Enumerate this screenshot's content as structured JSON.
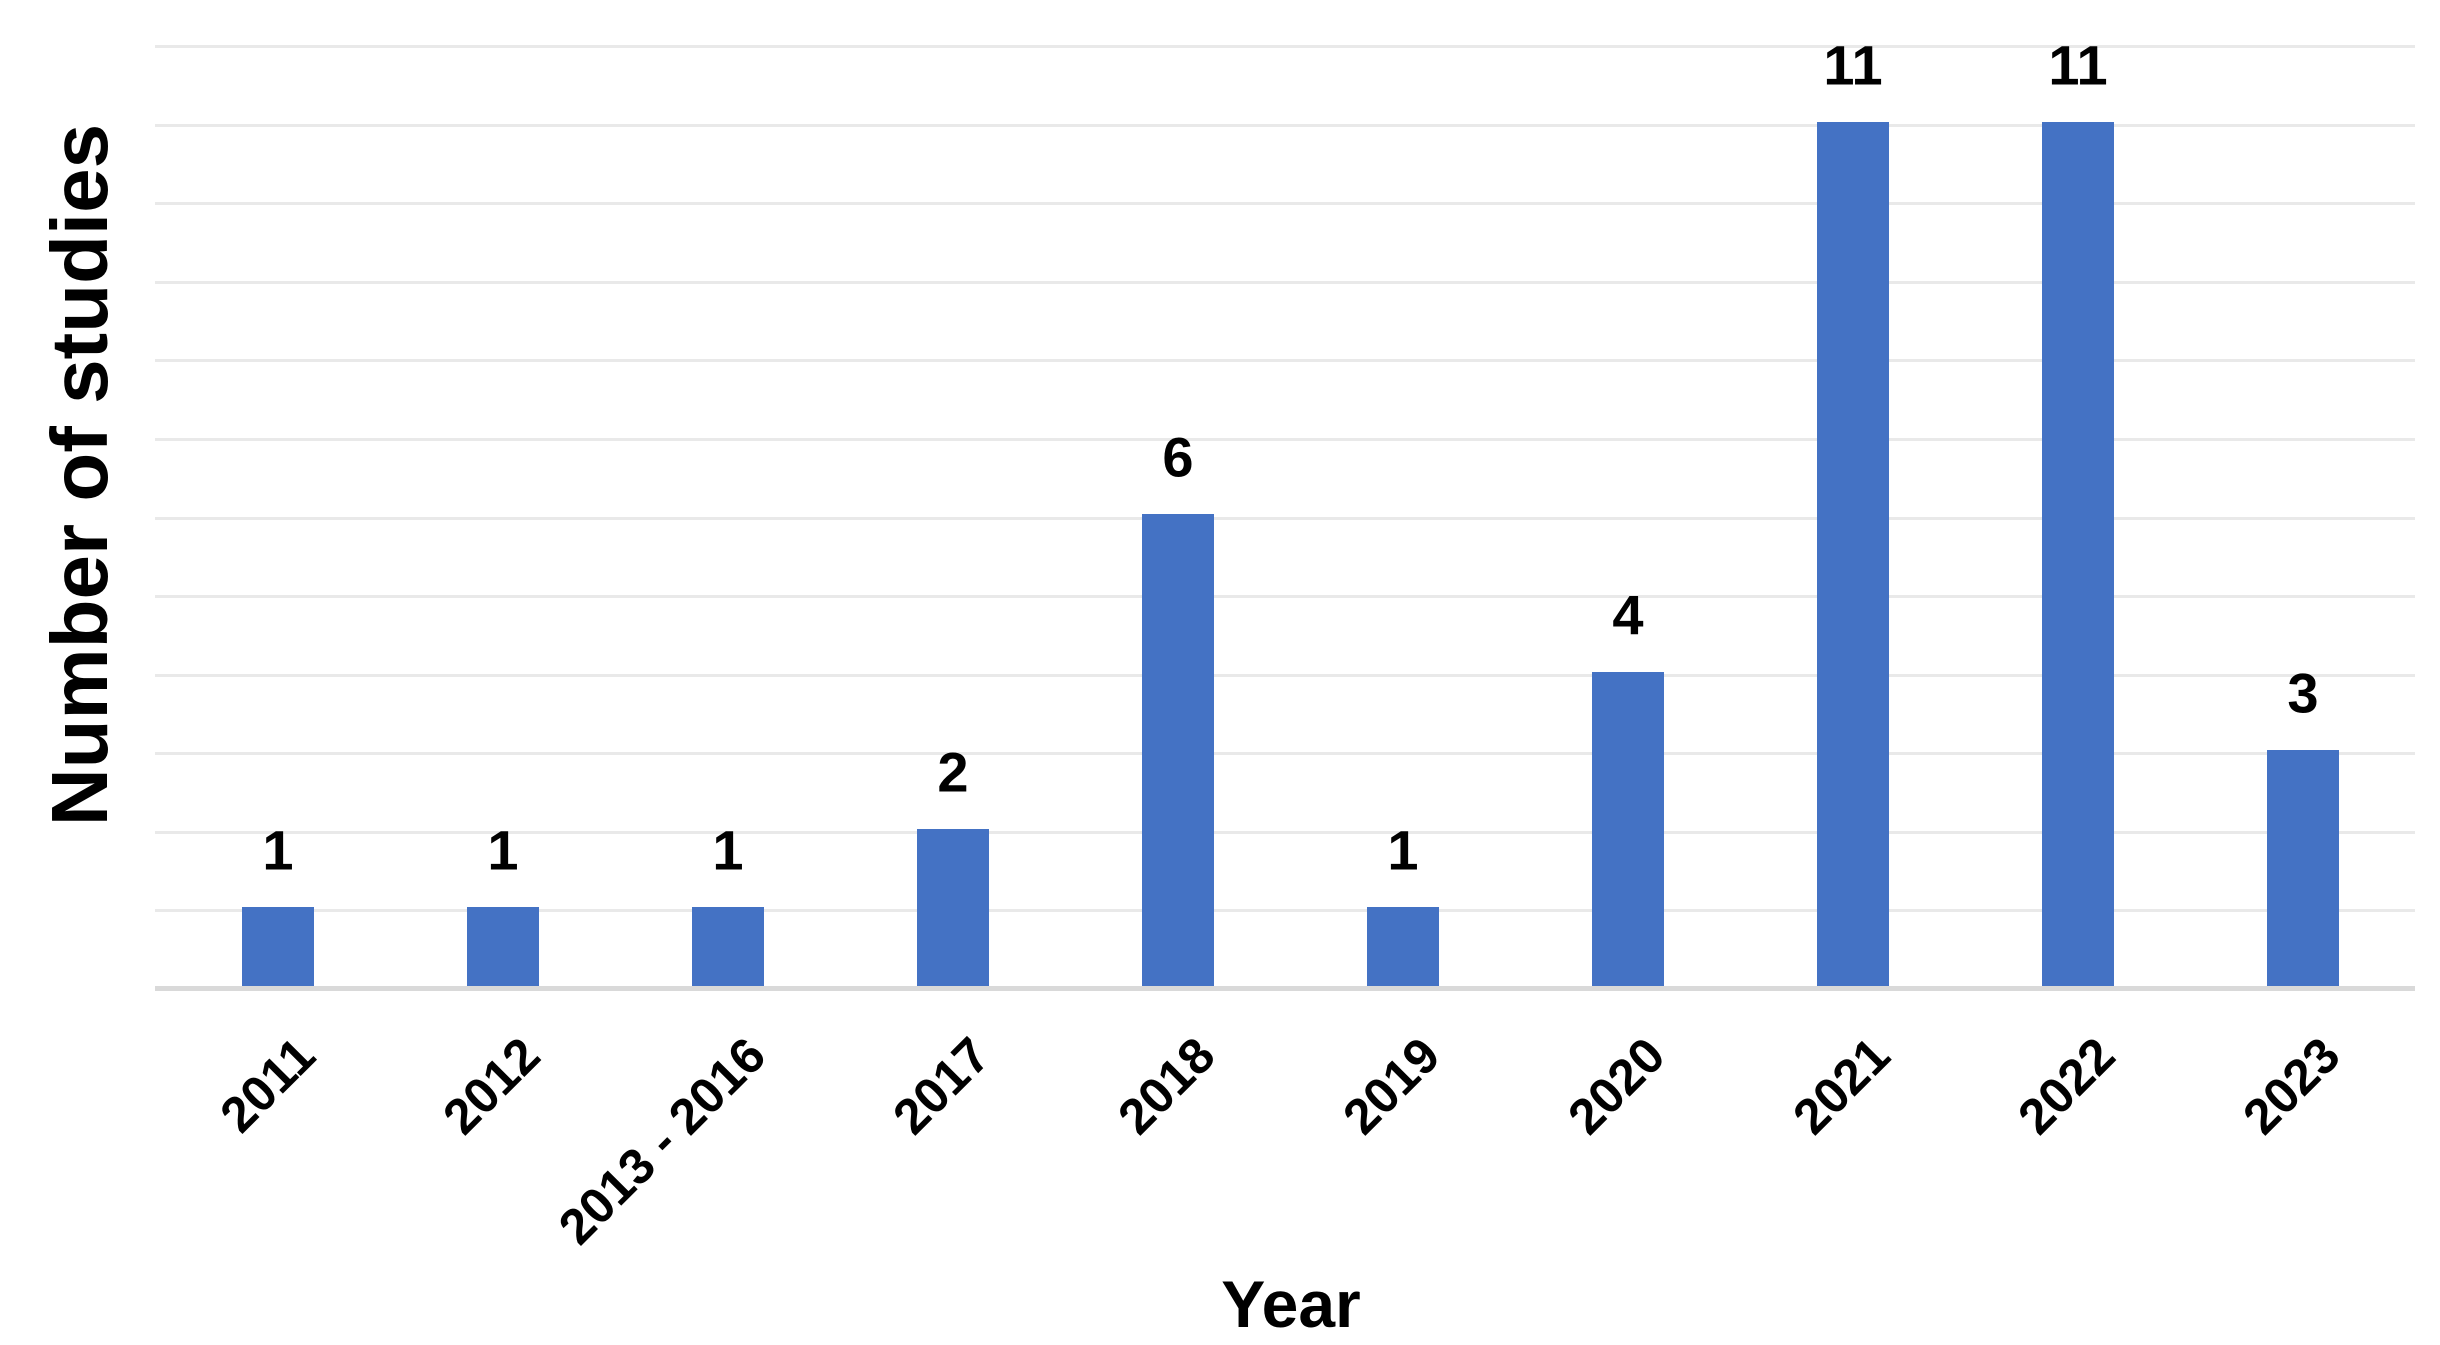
{
  "chart_data": {
    "type": "bar",
    "title": "",
    "categories": [
      "2011",
      "2012",
      "2013 - 2016",
      "2017",
      "2018",
      "2019",
      "2020",
      "2021",
      "2022",
      "2023"
    ],
    "values": [
      1,
      1,
      1,
      2,
      6,
      1,
      4,
      11,
      11,
      3
    ],
    "data_labels": [
      "1",
      "1",
      "1",
      "2",
      "6",
      "1",
      "4",
      "11",
      "11",
      "3"
    ],
    "xlabel": "Year",
    "ylabel": "Number of studies",
    "ylim": [
      0,
      12
    ],
    "gridline_step": 1,
    "grid": "horizontal-only",
    "y_tick_labels_visible": false,
    "legend": "none",
    "bar_color": "#4472c4",
    "gridline_color": "#e9e9e9",
    "axis_line_color": "#d9d9d9",
    "background_color": "#ffffff",
    "tick_label_rotation_deg": 45
  }
}
